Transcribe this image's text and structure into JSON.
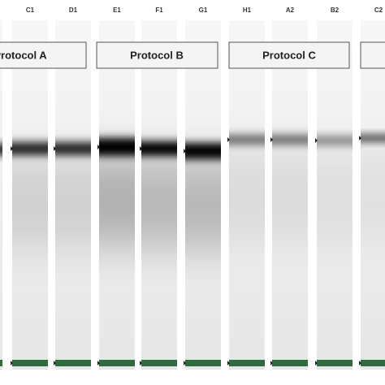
{
  "lanes": [
    "C1",
    "D1",
    "E1",
    "F1",
    "G1",
    "H1",
    "A2",
    "B2",
    "C2"
  ],
  "protocols": [
    "Protocol A",
    "Protocol B",
    "Protocol C"
  ]
}
